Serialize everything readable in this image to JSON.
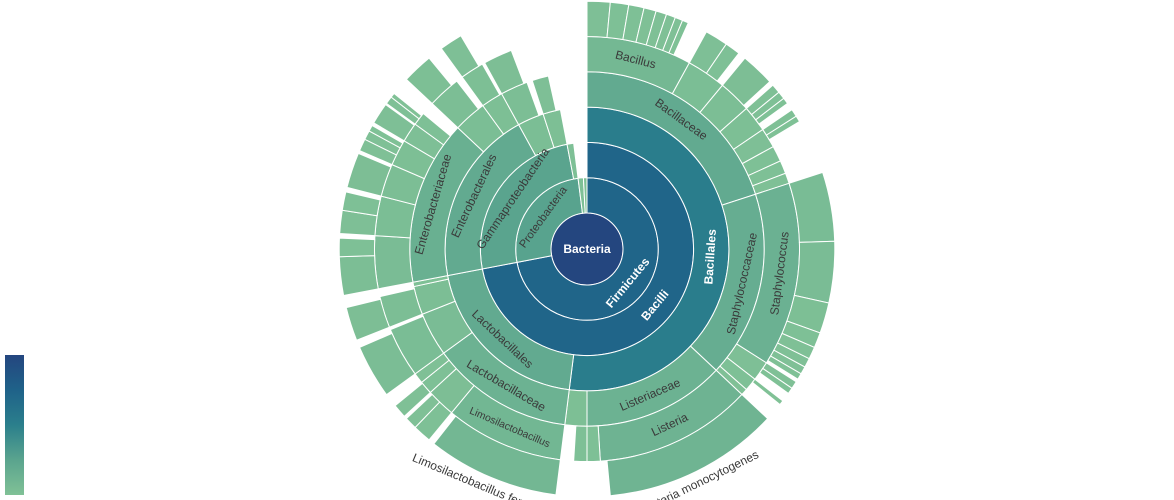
{
  "chart_data": {
    "type": "sunburst",
    "colorscale": [
      "#80c196",
      "#5aa48e",
      "#2b7f8c",
      "#1f6289",
      "#24467f"
    ],
    "root": {
      "name": "Bacteria",
      "value": 100,
      "children": [
        {
          "name": "Firmicutes",
          "value": 72,
          "children": [
            {
              "name": "Bacilli",
              "value": 72,
              "children": [
                {
                  "name": "Bacillales",
                  "value": 52,
                  "children": [
                    {
                      "name": "Bacillaceae",
                      "value": 20,
                      "children": [
                        {
                          "name": "Bacillus",
                          "value": 8,
                          "children": [
                            {
                              "name": null,
                              "value": 1.5
                            },
                            {
                              "name": null,
                              "value": 1.2
                            },
                            {
                              "name": null,
                              "value": 1.0
                            },
                            {
                              "name": null,
                              "value": 0.8
                            },
                            {
                              "name": null,
                              "value": 0.7
                            },
                            {
                              "name": null,
                              "value": 0.6
                            },
                            {
                              "name": null,
                              "value": 0.5
                            },
                            {
                              "name": null,
                              "value": 0.4
                            }
                          ]
                        },
                        {
                          "name": null,
                          "value": 3,
                          "children": [
                            {
                              "name": null,
                              "value": 1.5
                            },
                            {
                              "name": null,
                              "value": 1.0
                            }
                          ]
                        },
                        {
                          "name": null,
                          "value": 2.5,
                          "children": [
                            {
                              "name": null,
                              "value": 2.2
                            }
                          ]
                        },
                        {
                          "name": null,
                          "value": 2,
                          "children": [
                            {
                              "name": null,
                              "value": 0.6
                            },
                            {
                              "name": null,
                              "value": 0.5
                            },
                            {
                              "name": null,
                              "value": 0.4
                            }
                          ]
                        },
                        {
                          "name": null,
                          "value": 1.5,
                          "children": [
                            {
                              "name": null,
                              "value": 0.5
                            },
                            {
                              "name": null,
                              "value": 0.4
                            }
                          ]
                        },
                        {
                          "name": null,
                          "value": 1.2
                        },
                        {
                          "name": null,
                          "value": 1
                        },
                        {
                          "name": null,
                          "value": 0.8
                        }
                      ]
                    },
                    {
                      "name": "Staphylococcaceae",
                      "value": 17,
                      "children": [
                        {
                          "name": "Staphylococcus",
                          "value": 14,
                          "children": [
                            {
                              "name": null,
                              "value": 4.5
                            },
                            {
                              "name": null,
                              "value": 4
                            },
                            {
                              "name": null,
                              "value": 2
                            },
                            {
                              "name": null,
                              "value": 1
                            },
                            {
                              "name": null,
                              "value": 0.8
                            },
                            {
                              "name": null,
                              "value": 0.6
                            },
                            {
                              "name": null,
                              "value": 0.5
                            },
                            {
                              "name": null,
                              "value": 0.4
                            }
                          ]
                        },
                        {
                          "name": null,
                          "value": 1.5,
                          "children": [
                            {
                              "name": null,
                              "value": 0.5
                            },
                            {
                              "name": null,
                              "value": 0.4
                            }
                          ]
                        },
                        {
                          "name": null,
                          "value": 1,
                          "children": [
                            {
                              "name": null,
                              "value": 0.3
                            }
                          ]
                        },
                        {
                          "name": null,
                          "value": 0.5
                        }
                      ]
                    },
                    {
                      "name": "Listeriaceae",
                      "value": 13,
                      "children": [
                        {
                          "name": "Listeria",
                          "value": 12,
                          "children": [
                            {
                              "name": "Listeria monocytogenes",
                              "value": 11.5
                            }
                          ]
                        },
                        {
                          "name": null,
                          "value": 1
                        }
                      ]
                    },
                    {
                      "name": null,
                      "value": 2,
                      "children": [
                        {
                          "name": null,
                          "value": 1.0
                        }
                      ]
                    }
                  ]
                },
                {
                  "name": "Lactobacillales",
                  "value": 20,
                  "children": [
                    {
                      "name": "Lactobacillaceae",
                      "value": 13,
                      "children": [
                        {
                          "name": "Limosilactobacillus",
                          "value": 9,
                          "children": [
                            {
                              "name": "Limosilactobacillus fermentum",
                              "value": 8.6
                            }
                          ]
                        },
                        {
                          "name": null,
                          "value": 2.2,
                          "children": [
                            {
                              "name": null,
                              "value": 1.2
                            },
                            {
                              "name": null,
                              "value": 0.8
                            }
                          ]
                        },
                        {
                          "name": null,
                          "value": 1,
                          "children": [
                            {
                              "name": null,
                              "value": 0.9
                            }
                          ]
                        },
                        {
                          "name": null,
                          "value": 0.8
                        }
                      ]
                    },
                    {
                      "name": null,
                      "value": 4,
                      "children": [
                        {
                          "name": null,
                          "value": 3.8,
                          "children": [
                            {
                              "name": null,
                              "value": 3.5
                            }
                          ]
                        }
                      ]
                    },
                    {
                      "name": null,
                      "value": 2.6,
                      "children": [
                        {
                          "name": null,
                          "value": 2.4,
                          "children": [
                            {
                              "name": null,
                              "value": 2.2
                            }
                          ]
                        }
                      ]
                    },
                    {
                      "name": null,
                      "value": 0.4
                    }
                  ]
                }
              ]
            }
          ]
        },
        {
          "name": "Proteobacteria",
          "value": 26,
          "children": [
            {
              "name": "Gammaproteobacteria",
              "value": 25,
              "children": [
                {
                  "name": "Enterobacterales",
                  "value": 20,
                  "children": [
                    {
                      "name": "Enterobacteriaceae",
                      "value": 15,
                      "children": [
                        {
                          "name": null,
                          "value": 4,
                          "children": [
                            {
                              "name": null,
                              "value": 2.5
                            },
                            {
                              "name": null,
                              "value": 1.2
                            }
                          ]
                        },
                        {
                          "name": null,
                          "value": 3,
                          "children": [
                            {
                              "name": null,
                              "value": 1.5
                            },
                            {
                              "name": null,
                              "value": 1.2
                            }
                          ]
                        },
                        {
                          "name": null,
                          "value": 2.5,
                          "children": [
                            {
                              "name": null,
                              "value": 2.3
                            }
                          ]
                        },
                        {
                          "name": null,
                          "value": 2,
                          "children": [
                            {
                              "name": null,
                              "value": 0.8
                            },
                            {
                              "name": null,
                              "value": 0.6
                            },
                            {
                              "name": null,
                              "value": 0.4
                            }
                          ]
                        },
                        {
                          "name": null,
                          "value": 1.5,
                          "children": [
                            {
                              "name": null,
                              "value": 1.4
                            }
                          ]
                        },
                        {
                          "name": null,
                          "value": 1,
                          "children": [
                            {
                              "name": null,
                              "value": 0.5
                            },
                            {
                              "name": null,
                              "value": 0.3
                            }
                          ]
                        }
                      ]
                    },
                    {
                      "name": null,
                      "value": 3,
                      "children": [
                        {
                          "name": null,
                          "value": 2.5,
                          "children": [
                            {
                              "name": null,
                              "value": 2
                            }
                          ]
                        }
                      ]
                    },
                    {
                      "name": null,
                      "value": 2,
                      "children": [
                        {
                          "name": null,
                          "value": 1.8,
                          "children": [
                            {
                              "name": null,
                              "value": 1.5
                            }
                          ]
                        }
                      ]
                    }
                  ]
                },
                {
                  "name": null,
                  "value": 3,
                  "children": [
                    {
                      "name": null,
                      "value": 2.5,
                      "children": [
                        {
                          "name": null,
                          "value": 2.2
                        }
                      ]
                    }
                  ]
                },
                {
                  "name": null,
                  "value": 2,
                  "children": [
                    {
                      "name": null,
                      "value": 1.5
                    }
                  ]
                }
              ]
            },
            {
              "name": null,
              "value": 1
            }
          ]
        },
        {
          "name": null,
          "value": 1.2
        },
        {
          "name": null,
          "value": 0.8
        }
      ]
    }
  }
}
